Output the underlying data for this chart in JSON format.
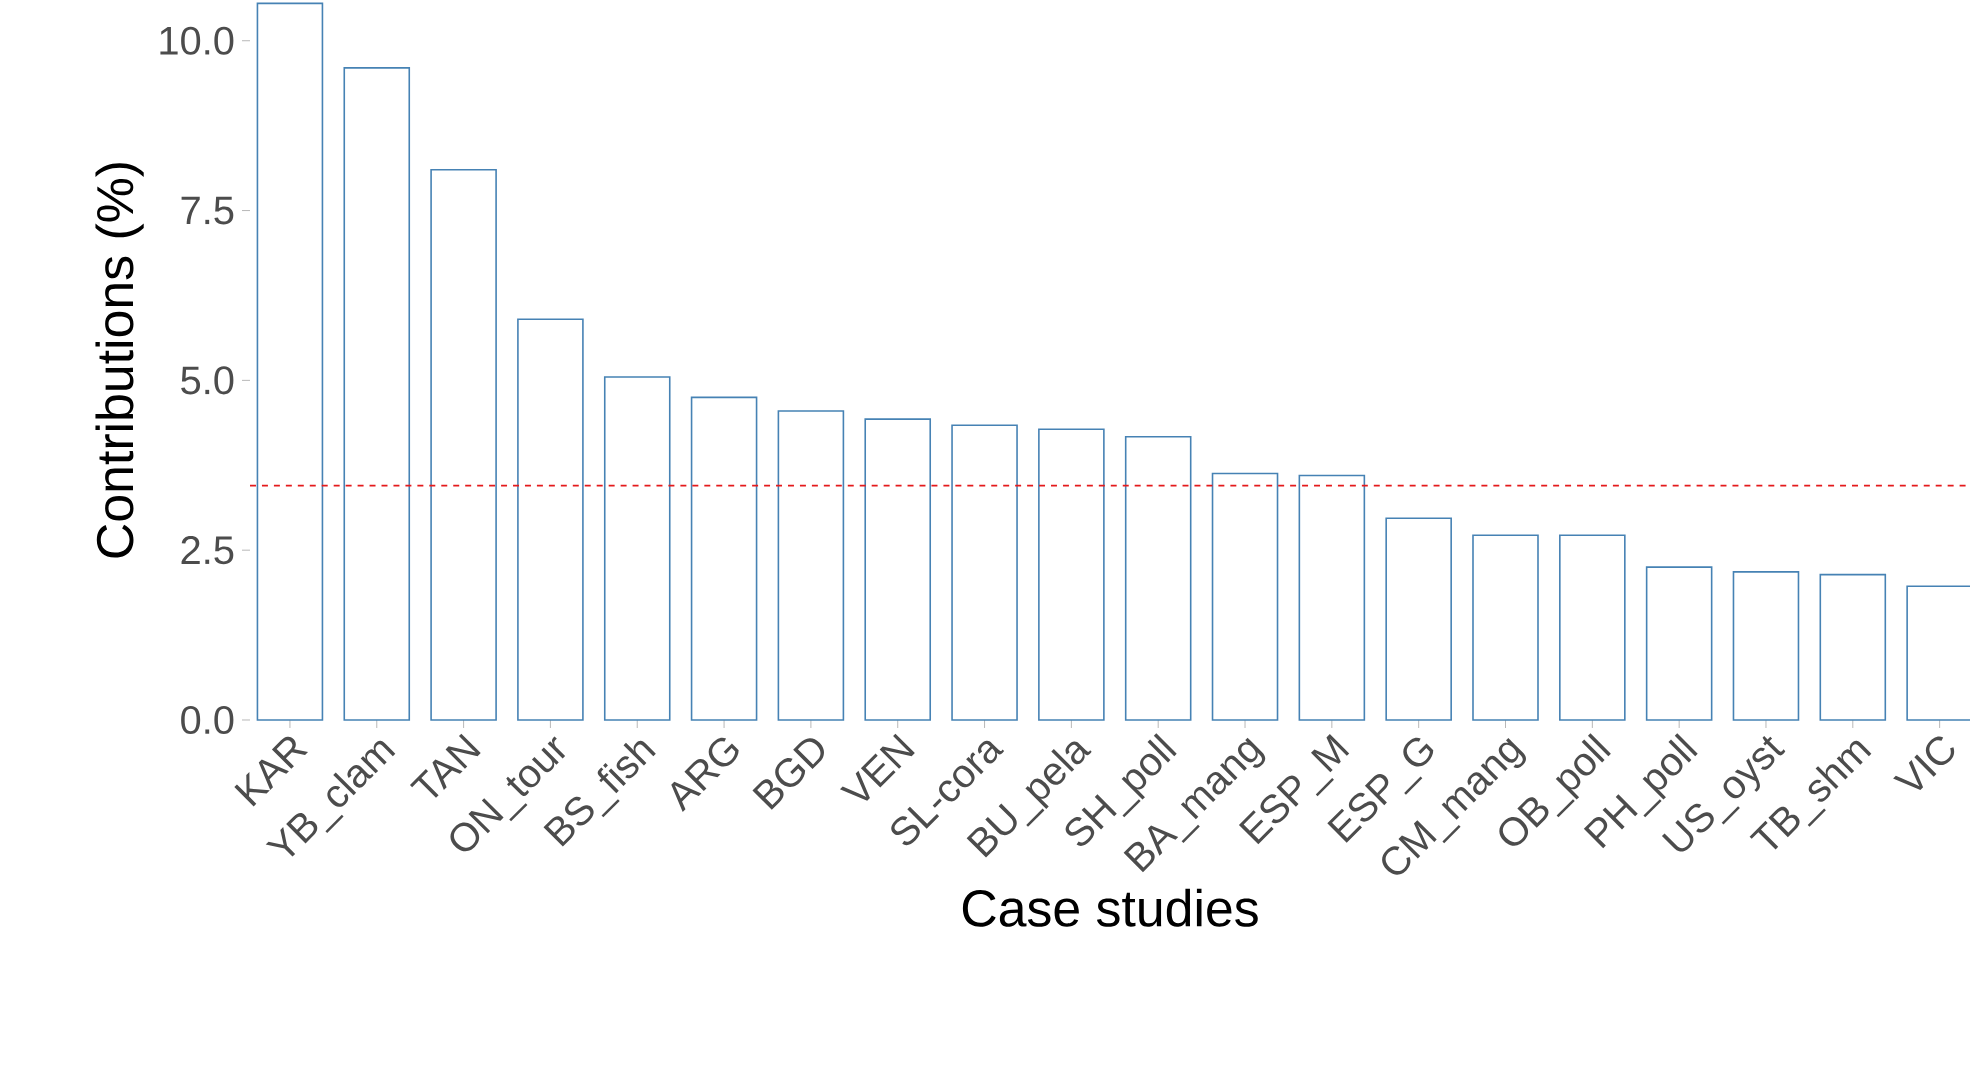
{
  "chart_data": {
    "type": "bar",
    "xlabel": "Case studies",
    "ylabel": "Contributions (%)",
    "categories": [
      "KAR",
      "YB_clam",
      "TAN",
      "ON_tour",
      "BS_fish",
      "ARG",
      "BGD",
      "VEN",
      "SL-cora",
      "BU_pela",
      "SH_poll",
      "BA_mang",
      "ESP_M",
      "ESP_G",
      "CM_mang",
      "OB_poll",
      "PH_poll",
      "US_oyst",
      "TB_shm",
      "VIC"
    ],
    "values": [
      10.55,
      9.6,
      8.1,
      5.9,
      5.05,
      4.75,
      4.55,
      4.43,
      4.34,
      4.28,
      4.17,
      3.63,
      3.6,
      2.97,
      2.72,
      2.72,
      2.25,
      2.18,
      2.14,
      1.97
    ],
    "color": "#4682b4",
    "ylim": [
      0,
      10.6
    ],
    "yticks": [
      {
        "value": 0,
        "label": "0.0"
      },
      {
        "value": 2.5,
        "label": "2.5"
      },
      {
        "value": 5,
        "label": "5.0"
      },
      {
        "value": 7.5,
        "label": "7.5"
      },
      {
        "value": 10,
        "label": "10.0"
      }
    ],
    "ref_lines": [
      {
        "axis": "y",
        "value": 3.45,
        "color": "#e41a1c",
        "line_style": "dashed"
      }
    ],
    "grid": false
  }
}
